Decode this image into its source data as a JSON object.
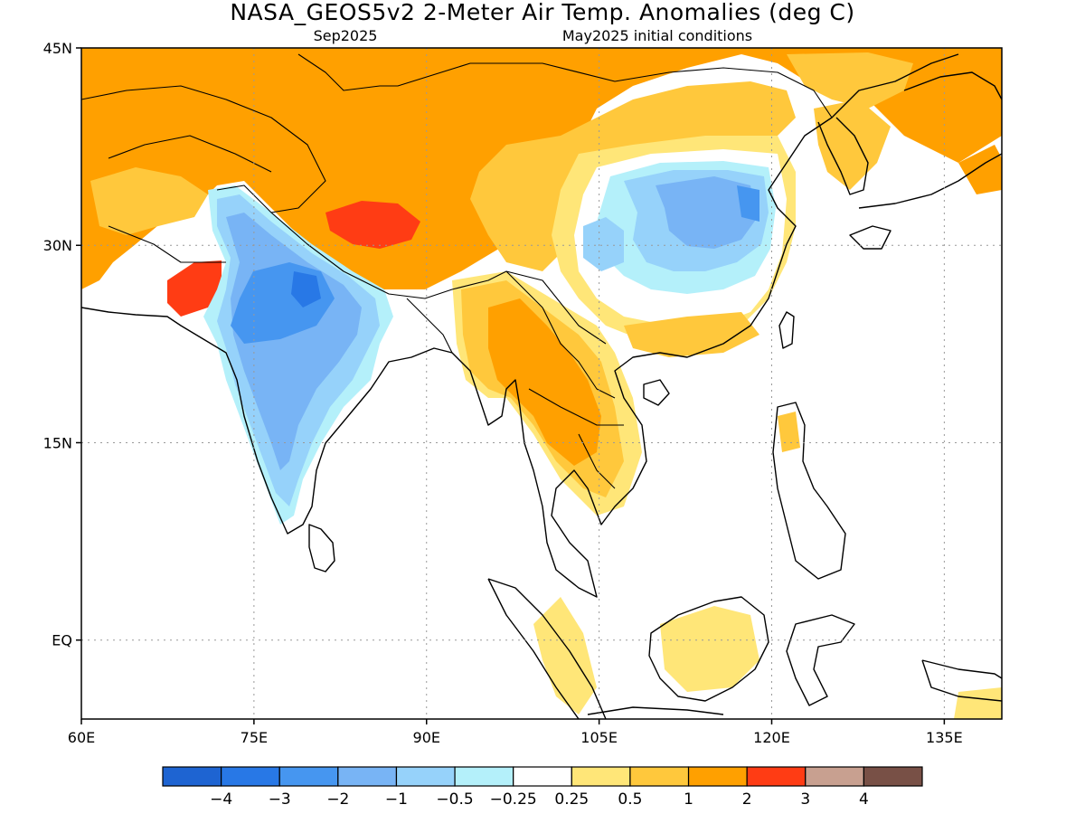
{
  "title": "NASA_GEOS5v2 2-Meter Air Temp. Anomalies (deg C)",
  "subtitle_left": "Sep2025",
  "subtitle_right": "May2025 initial conditions",
  "map": {
    "lon_range": [
      60,
      140
    ],
    "lat_range": [
      -6,
      45
    ],
    "lat_ticks": [
      {
        "value": 45,
        "label": "45N"
      },
      {
        "value": 30,
        "label": "30N"
      },
      {
        "value": 15,
        "label": "15N"
      },
      {
        "value": 0,
        "label": "EQ"
      }
    ],
    "lon_ticks": [
      {
        "value": 60,
        "label": "60E"
      },
      {
        "value": 75,
        "label": "75E"
      },
      {
        "value": 90,
        "label": "90E"
      },
      {
        "value": 105,
        "label": "105E"
      },
      {
        "value": 120,
        "label": "120E"
      },
      {
        "value": 135,
        "label": "135E"
      }
    ],
    "grid": true,
    "anomaly_regions": [
      {
        "name": "central-asia-warm",
        "level": "1 to 2"
      },
      {
        "name": "tibet-warm",
        "level": "2 to 3"
      },
      {
        "name": "pakistan-warm",
        "level": "2 to 3"
      },
      {
        "name": "india-cool",
        "level": "-3 to -1"
      },
      {
        "name": "east-china-cool",
        "level": "-2 to -0.5"
      },
      {
        "name": "southeast-asia-warm",
        "level": "0.5 to 2"
      }
    ]
  },
  "colorbar": {
    "colors": [
      "#1e64d2",
      "#2878e6",
      "#4696f0",
      "#78b4f5",
      "#96d2fa",
      "#b4f0fa",
      "#ffffff",
      "#ffe678",
      "#ffc83c",
      "#ffa000",
      "#ff3c14",
      "#c8a090",
      "#785046"
    ],
    "labels": [
      "−4",
      "−3",
      "−2",
      "−1",
      "−0.5",
      "−0.25",
      "0.25",
      "0.5",
      "1",
      "2",
      "3",
      "4"
    ]
  }
}
